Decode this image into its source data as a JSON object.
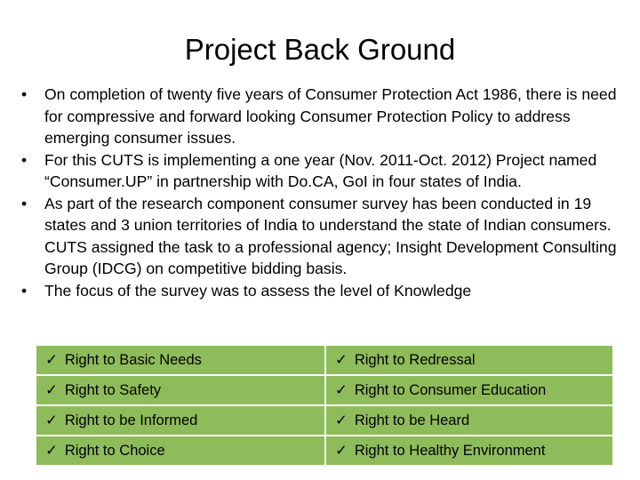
{
  "title": "Project Back Ground",
  "bullets": [
    "On completion of twenty five years of Consumer Protection Act 1986, there is need for compressive and forward looking Consumer Protection Policy to address emerging consumer issues.",
    " For this CUTS is implementing a one year (Nov. 2011-Oct. 2012) Project named “Consumer.UP” in partnership with Do.CA, GoI in four states of India.",
    "As part of the research component consumer survey has been conducted in 19 states and 3 union territories of India to understand the state of Indian consumers. CUTS assigned the task to a professional agency; Insight Development Consulting Group (IDCG) on competitive bidding basis.",
    "The focus of the survey was to assess the level of Knowledge"
  ],
  "bullet_symbol": "•",
  "check_symbol": "✓",
  "rights": [
    [
      "Right to Basic Needs",
      "Right to Redressal"
    ],
    [
      "Right to Safety",
      "Right to Consumer Education"
    ],
    [
      "Right to be Informed",
      "Right to be Heard"
    ],
    [
      "Right to Choice",
      "Right to Healthy Environment"
    ]
  ],
  "colors": {
    "table_fill": "#8fbc5a",
    "cell_border": "#ffffff",
    "text": "#000000"
  }
}
